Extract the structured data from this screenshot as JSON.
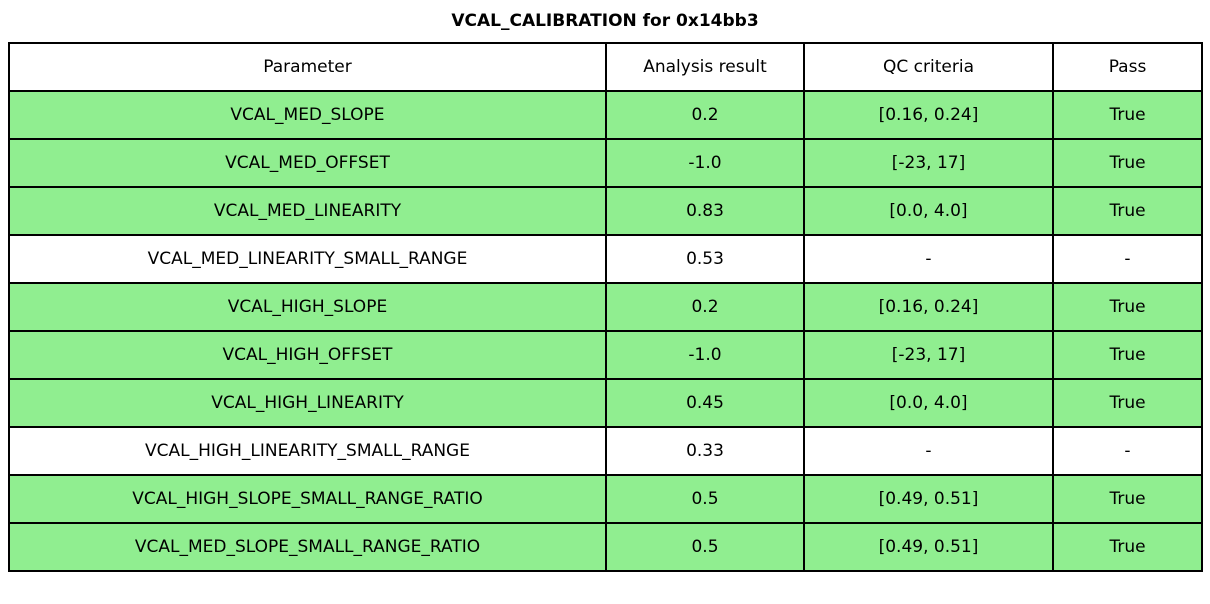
{
  "title": "VCAL_CALIBRATION for 0x14bb3",
  "chart_data": {
    "type": "table",
    "title": "VCAL_CALIBRATION for 0x14bb3",
    "columns": [
      "Parameter",
      "Analysis result",
      "QC criteria",
      "Pass"
    ],
    "rows": [
      {
        "parameter": "VCAL_MED_SLOPE",
        "analysis_result": "0.2",
        "qc_criteria": "[0.16, 0.24]",
        "pass": "True",
        "highlight": true
      },
      {
        "parameter": "VCAL_MED_OFFSET",
        "analysis_result": "-1.0",
        "qc_criteria": "[-23, 17]",
        "pass": "True",
        "highlight": true
      },
      {
        "parameter": "VCAL_MED_LINEARITY",
        "analysis_result": "0.83",
        "qc_criteria": "[0.0, 4.0]",
        "pass": "True",
        "highlight": true
      },
      {
        "parameter": "VCAL_MED_LINEARITY_SMALL_RANGE",
        "analysis_result": "0.53",
        "qc_criteria": "-",
        "pass": "-",
        "highlight": false
      },
      {
        "parameter": "VCAL_HIGH_SLOPE",
        "analysis_result": "0.2",
        "qc_criteria": "[0.16, 0.24]",
        "pass": "True",
        "highlight": true
      },
      {
        "parameter": "VCAL_HIGH_OFFSET",
        "analysis_result": "-1.0",
        "qc_criteria": "[-23, 17]",
        "pass": "True",
        "highlight": true
      },
      {
        "parameter": "VCAL_HIGH_LINEARITY",
        "analysis_result": "0.45",
        "qc_criteria": "[0.0, 4.0]",
        "pass": "True",
        "highlight": true
      },
      {
        "parameter": "VCAL_HIGH_LINEARITY_SMALL_RANGE",
        "analysis_result": "0.33",
        "qc_criteria": "-",
        "pass": "-",
        "highlight": false
      },
      {
        "parameter": "VCAL_HIGH_SLOPE_SMALL_RANGE_RATIO",
        "analysis_result": "0.5",
        "qc_criteria": "[0.49, 0.51]",
        "pass": "True",
        "highlight": true
      },
      {
        "parameter": "VCAL_MED_SLOPE_SMALL_RANGE_RATIO",
        "analysis_result": "0.5",
        "qc_criteria": "[0.49, 0.51]",
        "pass": "True",
        "highlight": true
      }
    ],
    "colors": {
      "pass_green": "#90EE90",
      "default_row": "#FFFFFF",
      "border": "#000000"
    },
    "layout": {
      "grid": "full-borders",
      "header_background": "#FFFFFF",
      "text_align": "center"
    }
  }
}
